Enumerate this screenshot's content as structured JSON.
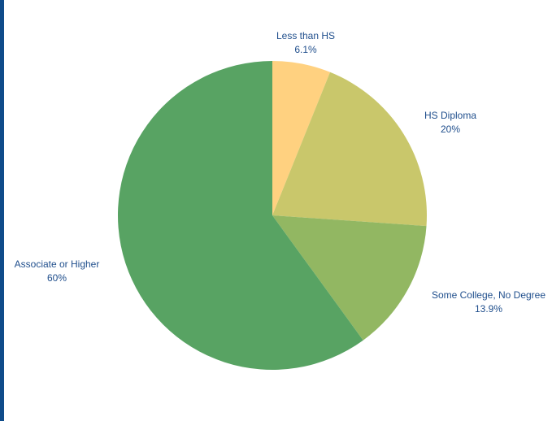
{
  "colors": {
    "accent_bar": "#0f4c8a",
    "label_text": "#1f4e8c",
    "background": "#ffffff"
  },
  "chart_data": {
    "type": "pie",
    "title": "",
    "slices": [
      {
        "label": "Less than HS",
        "value": 6.1,
        "value_label": "6.1%",
        "color": "#ffd180"
      },
      {
        "label": "HS Diploma",
        "value": 20,
        "value_label": "20%",
        "color": "#c9c76b"
      },
      {
        "label": "Some College, No Degree",
        "value": 13.9,
        "value_label": "13.9%",
        "color": "#92b762"
      },
      {
        "label": "Associate or Higher",
        "value": 60,
        "value_label": "60%",
        "color": "#58a363"
      }
    ],
    "start_angle": "12 o'clock",
    "direction": "clockwise",
    "legend": "none"
  }
}
